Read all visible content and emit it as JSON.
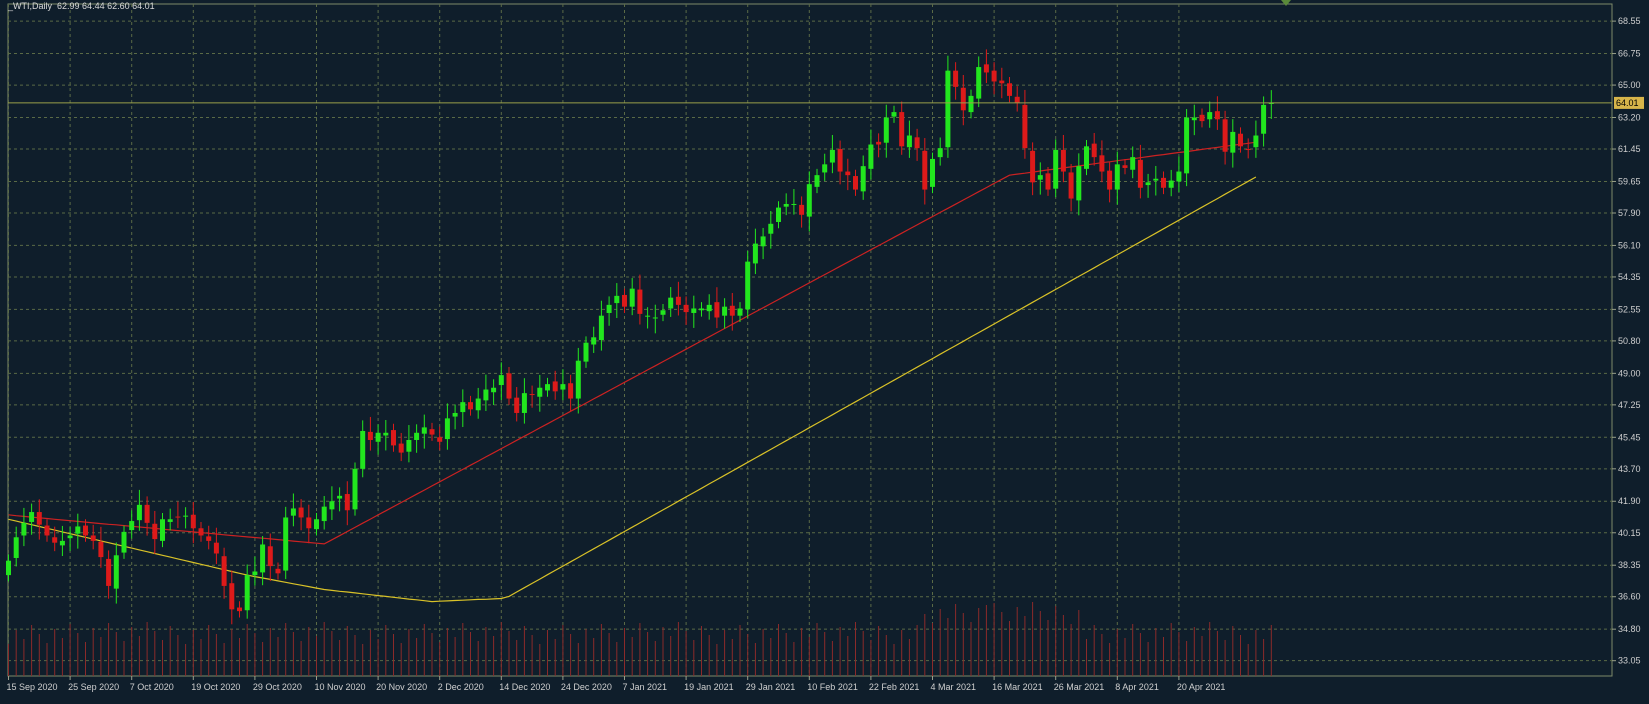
{
  "chart_data": {
    "type": "candlestick",
    "header": {
      "symbol": "_WTI,Daily",
      "ohlc": "62.99 64.44 62.60 64.01"
    },
    "current_price": {
      "value": 64.01,
      "label": "64.01"
    },
    "y_ticks": [
      33.05,
      34.8,
      36.6,
      38.35,
      40.15,
      41.9,
      43.7,
      45.45,
      47.25,
      49.0,
      50.8,
      52.55,
      54.35,
      56.1,
      57.9,
      59.65,
      61.45,
      63.2,
      65.0,
      66.75,
      68.55
    ],
    "y_tick_labels": [
      "33.05",
      "34.80",
      "36.60",
      "38.35",
      "40.15",
      "41.90",
      "43.70",
      "45.45",
      "47.25",
      "49.00",
      "50.80",
      "52.55",
      "54.35",
      "56.10",
      "57.90",
      "59.65",
      "61.45",
      "63.20",
      "65.00",
      "66.75",
      "68.55"
    ],
    "ylim": [
      32.2,
      69.5
    ],
    "x_tick_labels": [
      {
        "label": "15 Sep 2020",
        "index": 0
      },
      {
        "label": "25 Sep 2020",
        "index": 8
      },
      {
        "label": "7 Oct 2020",
        "index": 16
      },
      {
        "label": "19 Oct 2020",
        "index": 24
      },
      {
        "label": "29 Oct 2020",
        "index": 32
      },
      {
        "label": "10 Nov 2020",
        "index": 40
      },
      {
        "label": "20 Nov 2020",
        "index": 48
      },
      {
        "label": "2 Dec 2020",
        "index": 56
      },
      {
        "label": "14 Dec 2020",
        "index": 64
      },
      {
        "label": "24 Dec 2020",
        "index": 72
      },
      {
        "label": "7 Jan 2021",
        "index": 80
      },
      {
        "label": "19 Jan 2021",
        "index": 88
      },
      {
        "label": "29 Jan 2021",
        "index": 96
      },
      {
        "label": "10 Feb 2021",
        "index": 104
      },
      {
        "label": "22 Feb 2021",
        "index": 112
      },
      {
        "label": "4 Mar 2021",
        "index": 120
      },
      {
        "label": "16 Mar 2021",
        "index": 128
      },
      {
        "label": "26 Mar 2021",
        "index": 136
      },
      {
        "label": "8 Apr 2021",
        "index": 144
      },
      {
        "label": "20 Apr 2021",
        "index": 152
      }
    ],
    "closes": [
      38.6,
      39.9,
      40.7,
      41.3,
      40.6,
      40.0,
      39.6,
      39.7,
      40.0,
      40.5,
      40.0,
      39.7,
      38.8,
      37.2,
      38.9,
      40.2,
      40.8,
      41.7,
      40.7,
      39.8,
      40.9,
      40.9,
      41.0,
      41.1,
      40.4,
      40.0,
      39.7,
      39.0,
      37.2,
      35.9,
      35.8,
      37.8,
      38.0,
      39.5,
      38.3,
      37.9,
      41.0,
      41.5,
      41.0,
      40.4,
      40.9,
      41.6,
      41.9,
      42.2,
      41.4,
      43.7,
      45.8,
      45.3,
      45.7,
      45.7,
      45.0,
      44.6,
      45.3,
      45.7,
      46.0,
      45.6,
      45.2,
      46.5,
      46.8,
      47.4,
      47.0,
      47.6,
      48.1,
      48.2,
      48.9,
      47.6,
      46.8,
      47.9,
      47.8,
      48.2,
      48.4,
      48.0,
      48.4,
      47.6,
      49.7,
      50.7,
      51.0,
      52.2,
      52.8,
      53.3,
      52.7,
      53.7,
      52.3,
      52.2,
      52.1,
      52.5,
      53.2,
      52.8,
      52.4,
      52.6,
      52.6,
      52.8,
      52.1,
      52.7,
      52.2,
      52.6,
      55.2,
      56.2,
      56.6,
      57.3,
      58.2,
      58.4,
      58.4,
      57.8,
      59.5,
      60.0,
      60.6,
      61.4,
      60.2,
      60.0,
      59.2,
      60.5,
      61.7,
      61.7,
      63.2,
      63.5,
      61.6,
      62.2,
      61.5,
      59.2,
      60.9,
      61.5,
      65.8,
      64.9,
      63.6,
      64.4,
      66.0,
      65.7,
      65.2,
      65.1,
      64.4,
      64.0,
      61.5,
      59.6,
      60.0,
      59.2,
      61.4,
      60.2,
      58.7,
      60.5,
      61.6,
      61.0,
      60.2,
      59.2,
      60.6,
      60.4,
      61.0,
      59.3,
      59.6,
      59.8,
      59.3,
      59.7,
      60.2,
      63.2,
      63.2,
      63.0,
      63.5,
      63.1,
      61.3,
      62.4,
      61.6,
      61.4,
      62.2,
      63.9,
      64.01
    ],
    "series": [
      {
        "name": "",
        "color": "#cc2222",
        "values": [
          41.15,
          41.1,
          41.06,
          41.02,
          40.98,
          40.94,
          40.9,
          40.86,
          40.82,
          40.78,
          40.74,
          40.7,
          40.66,
          40.62,
          40.59,
          40.55,
          40.51,
          40.47,
          40.43,
          40.39,
          40.35,
          40.31,
          40.27,
          40.24,
          40.2,
          40.16,
          40.12,
          40.08,
          40.04,
          40.0,
          39.96,
          39.92,
          39.89,
          39.85,
          39.81,
          39.77,
          39.73,
          39.69,
          39.65,
          39.61,
          39.57,
          39.53,
          39.76,
          39.99,
          40.22,
          40.45,
          40.68,
          40.91,
          41.14,
          41.37,
          41.6,
          41.83,
          42.06,
          42.29,
          42.52,
          42.75,
          42.98,
          43.21,
          43.44,
          43.67,
          43.9,
          44.13,
          44.36,
          44.59,
          44.82,
          45.05,
          45.28,
          45.51,
          45.74,
          45.97,
          46.2,
          46.43,
          46.66,
          46.89,
          47.12,
          47.35,
          47.58,
          47.81,
          48.04,
          48.27,
          48.5,
          48.73,
          48.96,
          49.19,
          49.42,
          49.65,
          49.88,
          50.11,
          50.34,
          50.57,
          50.8,
          51.03,
          51.26,
          51.49,
          51.72,
          51.95,
          52.18,
          52.41,
          52.64,
          52.87,
          53.1,
          53.33,
          53.56,
          53.79,
          54.02,
          54.25,
          54.48,
          54.71,
          54.94,
          55.17,
          55.4,
          55.63,
          55.86,
          56.09,
          56.32,
          56.55,
          56.78,
          57.01,
          57.24,
          57.47,
          57.7,
          57.93,
          58.16,
          58.39,
          58.62,
          58.85,
          59.08,
          59.31,
          59.54,
          59.77,
          60.0,
          60.06,
          60.11,
          60.17,
          60.23,
          60.29,
          60.34,
          60.4,
          60.46,
          60.51,
          60.57,
          60.63,
          60.69,
          60.74,
          60.8,
          60.86,
          60.91,
          60.97,
          61.03,
          61.09,
          61.14,
          61.2,
          61.26,
          61.31,
          61.37,
          61.43,
          61.49,
          61.54,
          61.6,
          61.66,
          61.71,
          61.77,
          61.83
        ]
      },
      {
        "name": "",
        "color": "#d9c228",
        "values": [
          40.9,
          40.8,
          40.7,
          40.6,
          40.5,
          40.4,
          40.3,
          40.2,
          40.1,
          40.0,
          39.9,
          39.8,
          39.7,
          39.6,
          39.5,
          39.4,
          39.3,
          39.2,
          39.1,
          39.0,
          38.9,
          38.8,
          38.7,
          38.6,
          38.5,
          38.4,
          38.3,
          38.2,
          38.1,
          38.0,
          37.9,
          37.8,
          37.72,
          37.64,
          37.56,
          37.48,
          37.4,
          37.32,
          37.24,
          37.16,
          37.08,
          37.0,
          36.95,
          36.9,
          36.86,
          36.81,
          36.76,
          36.71,
          36.66,
          36.62,
          36.57,
          36.52,
          36.47,
          36.43,
          36.38,
          36.33,
          36.35,
          36.37,
          36.39,
          36.41,
          36.43,
          36.45,
          36.46,
          36.48,
          36.5,
          36.62,
          36.86,
          37.1,
          37.34,
          37.58,
          37.82,
          38.06,
          38.3,
          38.54,
          38.78,
          39.02,
          39.26,
          39.5,
          39.74,
          39.98,
          40.22,
          40.46,
          40.7,
          40.94,
          41.18,
          41.42,
          41.66,
          41.9,
          42.14,
          42.38,
          42.62,
          42.86,
          43.1,
          43.34,
          43.58,
          43.82,
          44.06,
          44.3,
          44.54,
          44.78,
          45.02,
          45.26,
          45.5,
          45.74,
          45.98,
          46.22,
          46.46,
          46.7,
          46.94,
          47.18,
          47.42,
          47.66,
          47.9,
          48.14,
          48.38,
          48.62,
          48.86,
          49.1,
          49.34,
          49.58,
          49.82,
          50.06,
          50.3,
          50.54,
          50.78,
          51.02,
          51.26,
          51.5,
          51.74,
          51.98,
          52.22,
          52.46,
          52.7,
          52.94,
          53.18,
          53.42,
          53.66,
          53.9,
          54.14,
          54.38,
          54.62,
          54.86,
          55.1,
          55.34,
          55.58,
          55.82,
          56.06,
          56.3,
          56.54,
          56.78,
          57.02,
          57.26,
          57.5,
          57.74,
          57.98,
          58.22,
          58.46,
          58.7,
          58.94,
          59.18,
          59.42,
          59.66,
          59.9
        ]
      }
    ],
    "colors": {
      "background": "#0f1e2b",
      "grid": "#5a6a46",
      "bull": "#22e61e",
      "bear": "#dd1a1a",
      "volume": "#8a2a2a",
      "axis_text": "#cfcfcf",
      "price_tag": "#d7b54a"
    },
    "grid": true
  }
}
